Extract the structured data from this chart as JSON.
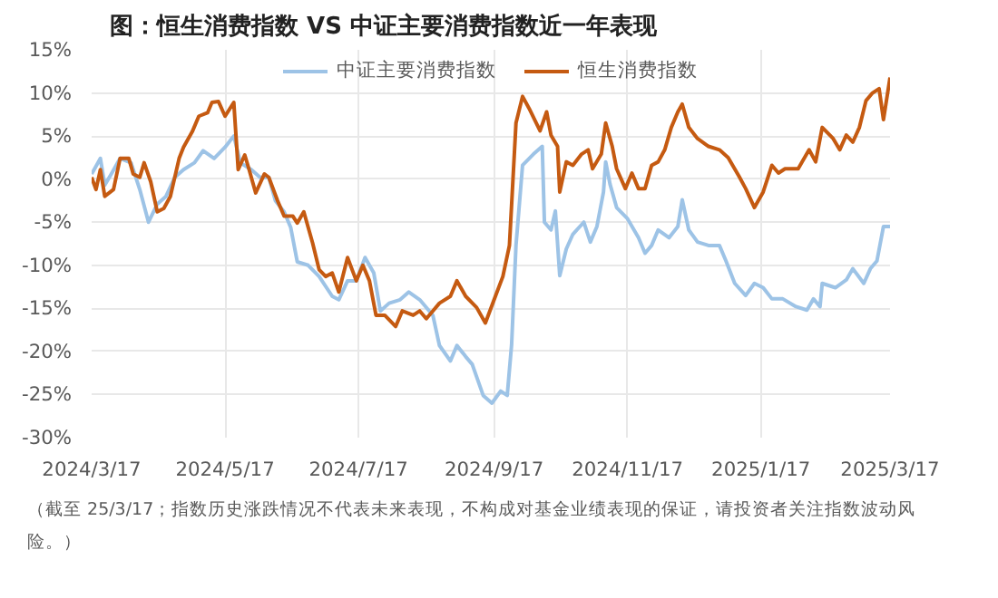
{
  "chart_data": {
    "type": "line",
    "title": "图：恒生消费指数 VS 中证主要消费指数近一年表现",
    "annotations": [
      "（截至 25/3/17；指数历史涨跌情况不代表未来表现，不构成对基金业绩表现的保证，请投资者关注指数波动风险。）"
    ],
    "xlim": [
      "2024-03-17",
      "2025-03-17"
    ],
    "xticks": [
      {
        "value": "2024-03-17",
        "label": "2024/3/17"
      },
      {
        "value": "2024-05-17",
        "label": "2024/5/17"
      },
      {
        "value": "2024-07-17",
        "label": "2024/7/17"
      },
      {
        "value": "2024-09-17",
        "label": "2024/9/17"
      },
      {
        "value": "2024-11-17",
        "label": "2024/11/17"
      },
      {
        "value": "2025-01-17",
        "label": "2025/1/17"
      },
      {
        "value": "2025-03-17",
        "label": "2025/3/17"
      }
    ],
    "ylim": [
      -30,
      15
    ],
    "yticks": [
      {
        "value": -30,
        "label": "-30%"
      },
      {
        "value": -25,
        "label": "-25%"
      },
      {
        "value": -20,
        "label": "-20%"
      },
      {
        "value": -15,
        "label": "-15%"
      },
      {
        "value": -10,
        "label": "-10%"
      },
      {
        "value": -5,
        "label": "-5%"
      },
      {
        "value": 0,
        "label": "0%"
      },
      {
        "value": 5,
        "label": "5%"
      },
      {
        "value": 10,
        "label": "10%"
      },
      {
        "value": 15,
        "label": "15%"
      }
    ],
    "grid": true,
    "legend": "top",
    "line_style": "solid",
    "series": [
      {
        "name": "中证主要消费指数",
        "color": "#9dc3e6",
        "x": [
          "2024-03-17",
          "2024-03-19",
          "2024-03-21",
          "2024-03-23",
          "2024-03-26",
          "2024-03-30",
          "2024-04-04",
          "2024-04-08",
          "2024-04-12",
          "2024-04-16",
          "2024-04-20",
          "2024-04-24",
          "2024-04-28",
          "2024-05-03",
          "2024-05-07",
          "2024-05-12",
          "2024-05-17",
          "2024-05-21",
          "2024-05-24",
          "2024-05-29",
          "2024-06-02",
          "2024-06-06",
          "2024-06-09",
          "2024-06-13",
          "2024-06-16",
          "2024-06-19",
          "2024-06-24",
          "2024-06-29",
          "2024-07-05",
          "2024-07-08",
          "2024-07-12",
          "2024-07-16",
          "2024-07-20",
          "2024-07-24",
          "2024-07-27",
          "2024-07-31",
          "2024-08-05",
          "2024-08-09",
          "2024-08-14",
          "2024-08-20",
          "2024-08-23",
          "2024-08-28",
          "2024-08-31",
          "2024-09-04",
          "2024-09-07",
          "2024-09-12",
          "2024-09-16",
          "2024-09-20",
          "2024-09-23",
          "2024-09-25",
          "2024-09-27",
          "2024-09-30",
          "2024-10-05",
          "2024-10-09",
          "2024-10-10",
          "2024-10-13",
          "2024-10-15",
          "2024-10-17",
          "2024-10-20",
          "2024-10-23",
          "2024-10-28",
          "2024-10-31",
          "2024-11-03",
          "2024-11-06",
          "2024-11-07",
          "2024-11-09",
          "2024-11-12",
          "2024-11-17",
          "2024-11-22",
          "2024-11-25",
          "2024-11-28",
          "2024-12-01",
          "2024-12-06",
          "2024-12-10",
          "2024-12-12",
          "2024-12-15",
          "2024-12-19",
          "2024-12-24",
          "2024-12-29",
          "2025-01-01",
          "2025-01-05",
          "2025-01-10",
          "2025-01-14",
          "2025-01-18",
          "2025-01-22",
          "2025-01-27",
          "2025-02-02",
          "2025-02-07",
          "2025-02-10",
          "2025-02-13",
          "2025-02-14",
          "2025-02-20",
          "2025-02-25",
          "2025-02-28",
          "2025-03-05",
          "2025-03-08",
          "2025-03-11",
          "2025-03-14",
          "2025-03-17"
        ],
        "values": [
          0.6,
          1.5,
          2.4,
          -0.7,
          0.6,
          2.4,
          1.9,
          -1.2,
          -5.0,
          -2.9,
          -2.0,
          0.2,
          1.1,
          1.9,
          3.3,
          2.4,
          3.7,
          5.0,
          1.9,
          1.1,
          0.2,
          0.2,
          -2.5,
          -3.8,
          -5.6,
          -9.6,
          -10.0,
          -11.3,
          -13.6,
          -14.0,
          -11.8,
          -11.8,
          -9.1,
          -10.9,
          -15.3,
          -14.4,
          -14.0,
          -13.1,
          -14.0,
          -15.8,
          -19.3,
          -21.1,
          -19.3,
          -20.6,
          -21.5,
          -25.1,
          -26.0,
          -24.6,
          -25.1,
          -19.2,
          -7.7,
          1.6,
          2.9,
          3.8,
          -5.0,
          -5.9,
          -3.7,
          -11.2,
          -8.1,
          -6.4,
          -5.0,
          -7.3,
          -5.5,
          -1.5,
          2.0,
          -0.6,
          -3.3,
          -4.6,
          -6.8,
          -8.6,
          -7.7,
          -5.9,
          -6.8,
          -5.5,
          -2.4,
          -5.9,
          -7.3,
          -7.7,
          -7.7,
          -9.5,
          -12.1,
          -13.5,
          -12.1,
          -12.6,
          -13.9,
          -13.9,
          -14.8,
          -15.2,
          -13.9,
          -14.8,
          -12.1,
          -12.6,
          -11.7,
          -10.4,
          -12.1,
          -10.4,
          -9.5,
          -5.5,
          -5.5
        ]
      },
      {
        "name": "恒生消费指数",
        "color": "#c55a11",
        "x": [
          "2024-03-17",
          "2024-03-19",
          "2024-03-21",
          "2024-03-23",
          "2024-03-27",
          "2024-03-30",
          "2024-04-03",
          "2024-04-05",
          "2024-04-08",
          "2024-04-10",
          "2024-04-13",
          "2024-04-16",
          "2024-04-19",
          "2024-04-22",
          "2024-04-26",
          "2024-04-28",
          "2024-05-02",
          "2024-05-05",
          "2024-05-09",
          "2024-05-11",
          "2024-05-14",
          "2024-05-17",
          "2024-05-21",
          "2024-05-23",
          "2024-05-26",
          "2024-05-28",
          "2024-05-31",
          "2024-06-04",
          "2024-06-06",
          "2024-06-10",
          "2024-06-13",
          "2024-06-17",
          "2024-06-19",
          "2024-06-22",
          "2024-06-26",
          "2024-06-29",
          "2024-07-02",
          "2024-07-05",
          "2024-07-08",
          "2024-07-12",
          "2024-07-16",
          "2024-07-19",
          "2024-07-22",
          "2024-07-25",
          "2024-07-29",
          "2024-08-03",
          "2024-08-06",
          "2024-08-11",
          "2024-08-14",
          "2024-08-17",
          "2024-08-20",
          "2024-08-23",
          "2024-08-28",
          "2024-08-31",
          "2024-09-04",
          "2024-09-09",
          "2024-09-13",
          "2024-09-17",
          "2024-09-21",
          "2024-09-24",
          "2024-09-27",
          "2024-09-30",
          "2024-10-03",
          "2024-10-08",
          "2024-10-11",
          "2024-10-13",
          "2024-10-16",
          "2024-10-17",
          "2024-10-20",
          "2024-10-23",
          "2024-10-27",
          "2024-10-30",
          "2024-11-01",
          "2024-11-05",
          "2024-11-07",
          "2024-11-10",
          "2024-11-12",
          "2024-11-16",
          "2024-11-19",
          "2024-11-22",
          "2024-11-25",
          "2024-11-28",
          "2024-12-01",
          "2024-12-04",
          "2024-12-07",
          "2024-12-10",
          "2024-12-12",
          "2024-12-15",
          "2024-12-19",
          "2024-12-24",
          "2024-12-29",
          "2025-01-02",
          "2025-01-07",
          "2025-01-10",
          "2025-01-14",
          "2025-01-18",
          "2025-01-22",
          "2025-01-25",
          "2025-01-28",
          "2025-02-03",
          "2025-02-08",
          "2025-02-11",
          "2025-02-14",
          "2025-02-19",
          "2025-02-22",
          "2025-02-25",
          "2025-02-28",
          "2025-03-03",
          "2025-03-06",
          "2025-03-09",
          "2025-03-12",
          "2025-03-14",
          "2025-03-17"
        ],
        "values": [
          0.2,
          -1.2,
          1.1,
          -2.0,
          -1.2,
          2.4,
          2.4,
          0.6,
          0.2,
          1.9,
          -0.3,
          -3.8,
          -3.4,
          -2.0,
          2.4,
          3.7,
          5.5,
          7.3,
          7.7,
          8.9,
          9.0,
          7.3,
          8.9,
          1.1,
          2.8,
          1.1,
          -1.6,
          0.6,
          0.2,
          -2.5,
          -4.3,
          -4.3,
          -5.1,
          -3.8,
          -7.4,
          -10.5,
          -11.3,
          -10.9,
          -13.1,
          -9.1,
          -11.8,
          -10.0,
          -11.8,
          -15.8,
          -15.8,
          -17.1,
          -15.3,
          -15.8,
          -15.3,
          -16.2,
          -15.3,
          -14.4,
          -13.6,
          -11.8,
          -13.6,
          -14.9,
          -16.7,
          -14.0,
          -11.3,
          -7.7,
          6.5,
          9.6,
          8.2,
          5.6,
          7.8,
          5.1,
          3.8,
          -1.5,
          2.0,
          1.6,
          2.9,
          3.4,
          1.2,
          2.9,
          6.5,
          3.8,
          1.2,
          -1.1,
          0.7,
          -1.1,
          -1.1,
          1.6,
          2.0,
          3.4,
          6.0,
          7.8,
          8.7,
          6.0,
          4.7,
          3.8,
          3.4,
          2.5,
          0.3,
          -1.1,
          -3.3,
          -1.5,
          1.6,
          0.7,
          1.2,
          1.2,
          3.4,
          2.0,
          6.0,
          4.7,
          3.4,
          5.1,
          4.3,
          6.0,
          9.1,
          10.0,
          10.5,
          6.9,
          11.8
        ]
      }
    ]
  }
}
